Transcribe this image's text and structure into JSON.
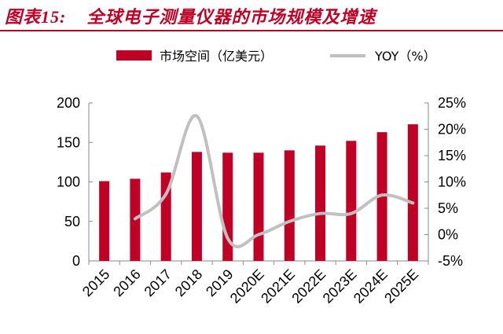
{
  "header": {
    "title_prefix": "图表",
    "title_number": "15:",
    "title_text": "全球电子测量仪器的市场规模及增速",
    "accent_color": "#c00025"
  },
  "chart_data": {
    "type": "bar",
    "categories": [
      "2015",
      "2016",
      "2017",
      "2018",
      "2019",
      "2020E",
      "2021E",
      "2022E",
      "2023E",
      "2024E",
      "2025E"
    ],
    "series": [
      {
        "name": "市场空间（亿美元）",
        "type": "bar",
        "axis": "left",
        "color": "#c00025",
        "values": [
          101,
          104,
          112,
          138,
          137,
          137,
          140,
          146,
          152,
          163,
          173
        ]
      },
      {
        "name": "YOY（%）",
        "type": "line",
        "axis": "right",
        "color": "#c0c0c0",
        "smooth": true,
        "values": [
          null,
          3.0,
          7.7,
          22.5,
          -0.7,
          0.0,
          2.5,
          4.0,
          4.0,
          7.5,
          6.0
        ]
      }
    ],
    "left_axis": {
      "ylim": [
        0,
        200
      ],
      "ticks": [
        "0",
        "50",
        "100",
        "150",
        "200"
      ]
    },
    "right_axis": {
      "ylim": [
        -5,
        25
      ],
      "ticks": [
        "-5%",
        "0%",
        "5%",
        "10%",
        "15%",
        "20%",
        "25%"
      ]
    },
    "legend": {
      "position": "top",
      "items": [
        "市场空间（亿美元）",
        "YOY（%）"
      ]
    },
    "grid": false
  }
}
